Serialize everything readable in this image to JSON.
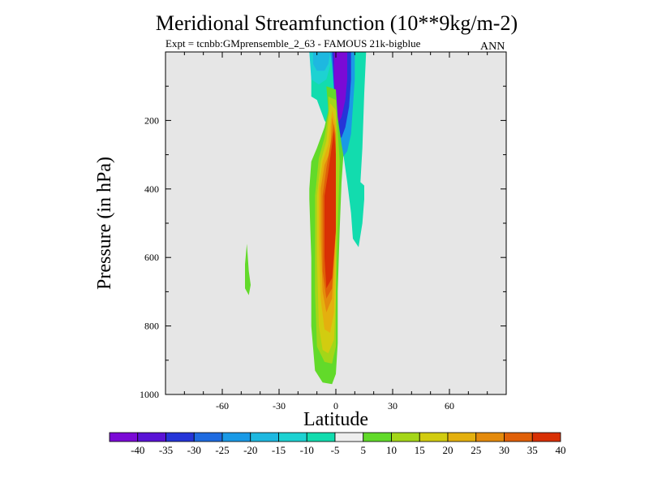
{
  "figure": {
    "title": "Meridional Streamfunction (10**9kg/m-2)",
    "subtitle": "Expt = tcnbb:GMprensemble_2_63 - FAMOUS 21k-bigblue",
    "season": "ANN"
  },
  "chart_data": {
    "type": "heatmap",
    "title": "Meridional Streamfunction (10**9kg/m-2)",
    "xlabel": "Latitude",
    "ylabel": "Pressure (in hPa)",
    "xlim": [
      -90,
      90
    ],
    "ylim": [
      0,
      1000
    ],
    "y_inverted": true,
    "x_ticks": [
      "-60",
      "-30",
      "0",
      "30",
      "60"
    ],
    "x_tick_values": [
      -60,
      -30,
      0,
      30,
      60
    ],
    "y_ticks": [
      "200",
      "400",
      "600",
      "800",
      "1000"
    ],
    "y_tick_values": [
      200,
      400,
      600,
      800,
      1000
    ],
    "background_color": "#e6e6e6",
    "colorbar": {
      "labels": [
        "-40",
        "-35",
        "-30",
        "-25",
        "-20",
        "-15",
        "-10",
        "-5",
        "5",
        "10",
        "15",
        "20",
        "25",
        "30",
        "35",
        "40"
      ],
      "colors": [
        "#7b0ad6",
        "#5a13d6",
        "#2535d8",
        "#1f6be0",
        "#1a9ae6",
        "#1eb8e0",
        "#1dd2d2",
        "#12dcae",
        "#eeeeee",
        "#62da2a",
        "#a4d618",
        "#d2cc10",
        "#e4b00e",
        "#e48a0c",
        "#e06008",
        "#d83004"
      ]
    },
    "features": [
      {
        "name": "northern-hadley-cell",
        "sign": "negative",
        "peak": -40,
        "lat_range": [
          -2,
          10
        ],
        "pressure_range": [
          0,
          320
        ]
      },
      {
        "name": "northern-outer-band",
        "sign": "negative",
        "peak": -10,
        "lat_range": [
          -13,
          20
        ],
        "pressure_range": [
          0,
          570
        ]
      },
      {
        "name": "southern-hadley-cell",
        "sign": "positive",
        "peak": 40,
        "lat_range": [
          -13,
          3
        ],
        "pressure_range": [
          100,
          970
        ]
      },
      {
        "name": "southern-small-cell",
        "sign": "positive",
        "peak": 5,
        "lat_range": [
          -48,
          -46
        ],
        "pressure_range": [
          560,
          710
        ]
      }
    ]
  }
}
